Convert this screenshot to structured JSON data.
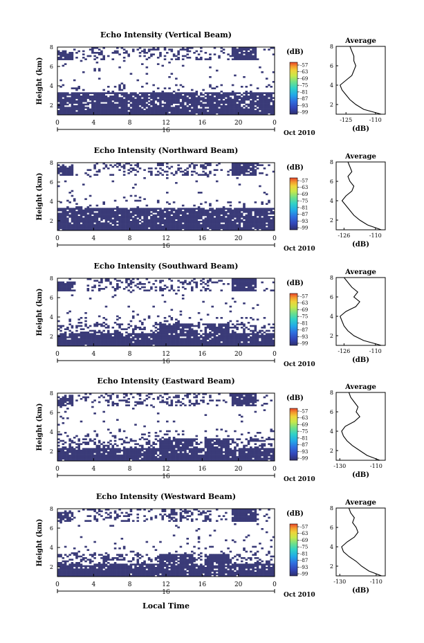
{
  "colors": {
    "echo": "#3a3b78",
    "echo_speck": "#3a5ad0",
    "colorbar": [
      "#2f2f6e",
      "#3246b8",
      "#2f6fe0",
      "#22a8e8",
      "#2fd1c8",
      "#6ee08a",
      "#c8e84a",
      "#f0d43a",
      "#f39a2e",
      "#e8442a"
    ]
  },
  "shared": {
    "colorbar_unit": "(dB)",
    "colorbar_ticks": [
      "-57",
      "-63",
      "-69",
      "-75",
      "-81",
      "-87",
      "-93",
      "-99"
    ],
    "x_ticks": [
      "0",
      "4",
      "8",
      "12",
      "16",
      "20",
      "0"
    ],
    "day_label": "16",
    "date_label": "Oct 2010",
    "y_ticks": [
      "2",
      "4",
      "6",
      "8"
    ],
    "ylabel": "Height (km)",
    "avg_title": "Average",
    "avg_xlabel": "(dB)",
    "xlabel": "Local Time"
  },
  "panels": [
    {
      "title": "Echo Intensity (Vertical Beam)",
      "avg_ticks": [
        "-125",
        "-110"
      ]
    },
    {
      "title": "Echo Intensity (Northward Beam)",
      "avg_ticks": [
        "-126",
        "-110"
      ]
    },
    {
      "title": "Echo Intensity (Southward Beam)",
      "avg_ticks": [
        "-126",
        "-110"
      ]
    },
    {
      "title": "Echo Intensity (Eastward Beam)",
      "avg_ticks": [
        "-130",
        "-110"
      ]
    },
    {
      "title": "Echo Intensity (Westward Beam)",
      "avg_ticks": [
        "-130",
        "-110"
      ]
    }
  ],
  "chart_data": [
    {
      "type": "heatmap",
      "title": "Echo Intensity (Vertical Beam)",
      "xlabel": "",
      "ylabel": "Height (km)",
      "xlim": [
        0,
        24
      ],
      "ylim": [
        1,
        8
      ],
      "colorbar": {
        "label": "(dB)",
        "range": [
          -99,
          -57
        ]
      },
      "avg_profile": {
        "title": "Average",
        "xlabel": "(dB)",
        "xlim": [
          -130,
          -105
        ],
        "height": [
          1,
          1.5,
          2,
          2.5,
          3,
          3.5,
          4,
          4.5,
          5,
          5.5,
          6,
          6.5,
          7,
          7.5,
          8
        ],
        "value": [
          -107,
          -116,
          -120,
          -123,
          -125,
          -127,
          -128,
          -125,
          -122,
          -121,
          -120,
          -121,
          -121,
          -122,
          -123
        ]
      }
    },
    {
      "type": "heatmap",
      "title": "Echo Intensity (Northward Beam)",
      "xlabel": "",
      "ylabel": "Height (km)",
      "xlim": [
        0,
        24
      ],
      "ylim": [
        1,
        8
      ],
      "colorbar": {
        "label": "(dB)",
        "range": [
          -99,
          -57
        ]
      },
      "avg_profile": {
        "title": "Average",
        "xlabel": "(dB)",
        "xlim": [
          -130,
          -105
        ],
        "height": [
          1,
          1.5,
          2,
          2.5,
          3,
          3.5,
          4,
          4.5,
          5,
          5.5,
          6,
          6.5,
          7,
          7.5,
          8
        ],
        "value": [
          -107,
          -114,
          -118,
          -121,
          -123,
          -125,
          -127,
          -125,
          -122,
          -121,
          -123,
          -124,
          -122,
          -123,
          -124
        ]
      }
    },
    {
      "type": "heatmap",
      "title": "Echo Intensity (Southward Beam)",
      "xlabel": "",
      "ylabel": "Height (km)",
      "xlim": [
        0,
        24
      ],
      "ylim": [
        1,
        8
      ],
      "colorbar": {
        "label": "(dB)",
        "range": [
          -99,
          -57
        ]
      },
      "avg_profile": {
        "title": "Average",
        "xlabel": "(dB)",
        "xlim": [
          -130,
          -105
        ],
        "height": [
          1,
          1.5,
          2,
          2.5,
          3,
          3.5,
          4,
          4.5,
          5,
          5.5,
          6,
          6.5,
          7,
          7.5,
          8
        ],
        "value": [
          -107,
          -116,
          -121,
          -124,
          -126,
          -127,
          -128,
          -125,
          -120,
          -118,
          -121,
          -119,
          -122,
          -124,
          -126
        ]
      }
    },
    {
      "type": "heatmap",
      "title": "Echo Intensity (Eastward Beam)",
      "xlabel": "",
      "ylabel": "Height (km)",
      "xlim": [
        0,
        24
      ],
      "ylim": [
        1,
        8
      ],
      "colorbar": {
        "label": "(dB)",
        "range": [
          -99,
          -57
        ]
      },
      "avg_profile": {
        "title": "Average",
        "xlabel": "(dB)",
        "xlim": [
          -132,
          -105
        ],
        "height": [
          1,
          1.5,
          2,
          2.5,
          3,
          3.5,
          4,
          4.5,
          5,
          5.5,
          6,
          6.5,
          7,
          7.5,
          8
        ],
        "value": [
          -108,
          -115,
          -119,
          -123,
          -126,
          -128,
          -129,
          -127,
          -122,
          -119,
          -121,
          -120,
          -122,
          -124,
          -125
        ]
      }
    },
    {
      "type": "heatmap",
      "title": "Echo Intensity (Westward Beam)",
      "xlabel": "Local Time",
      "ylabel": "Height (km)",
      "xlim": [
        0,
        24
      ],
      "ylim": [
        1,
        8
      ],
      "colorbar": {
        "label": "(dB)",
        "range": [
          -99,
          -57
        ]
      },
      "avg_profile": {
        "title": "Average",
        "xlabel": "(dB)",
        "xlim": [
          -132,
          -105
        ],
        "height": [
          1,
          1.5,
          2,
          2.5,
          3,
          3.5,
          4,
          4.5,
          5,
          5.5,
          6,
          6.5,
          7,
          7.5,
          8
        ],
        "value": [
          -107,
          -114,
          -118,
          -121,
          -125,
          -128,
          -129,
          -126,
          -122,
          -120,
          -121,
          -123,
          -122,
          -124,
          -125
        ]
      }
    }
  ]
}
